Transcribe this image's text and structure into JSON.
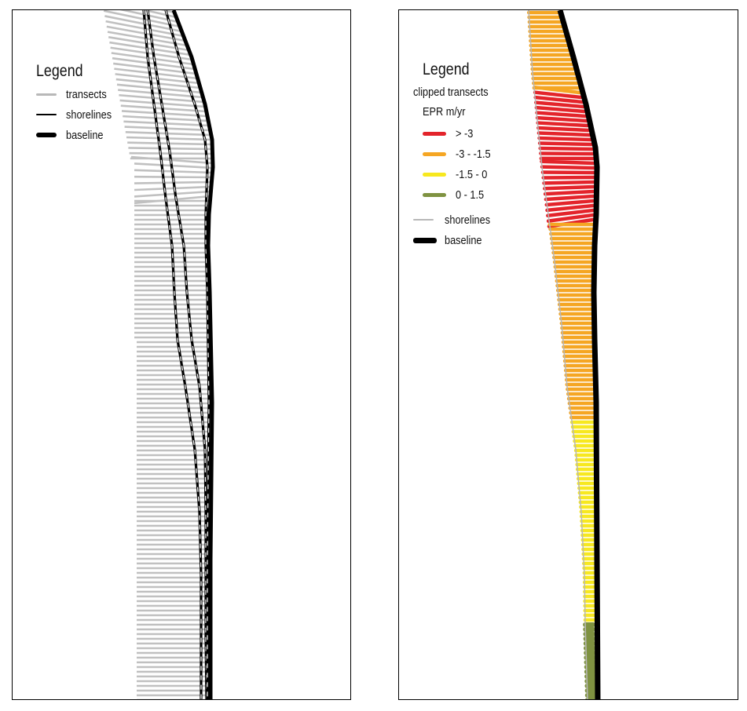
{
  "left_panel": {
    "legend": {
      "title": "Legend",
      "items": [
        {
          "label": "transects",
          "color": "#b8b8b8",
          "style": "thin"
        },
        {
          "label": "shorelines",
          "color": "#000000",
          "style": "medium"
        },
        {
          "label": "baseline",
          "color": "#000000",
          "style": "thick"
        }
      ]
    }
  },
  "right_panel": {
    "legend": {
      "title": "Legend",
      "subtitle": "clipped transects",
      "field": "EPR m/yr",
      "classes": [
        {
          "label": "> -3",
          "color": "#e3242b"
        },
        {
          "label": "-3 - -1.5",
          "color": "#f5a623"
        },
        {
          "label": "-1.5 - 0",
          "color": "#f7e81f"
        },
        {
          "label": "0 - 1.5",
          "color": "#7f9241"
        }
      ],
      "items": [
        {
          "label": "shorelines",
          "color": "#b8b8b8",
          "style": "thin"
        },
        {
          "label": "baseline",
          "color": "#000000",
          "style": "thick"
        }
      ]
    }
  }
}
